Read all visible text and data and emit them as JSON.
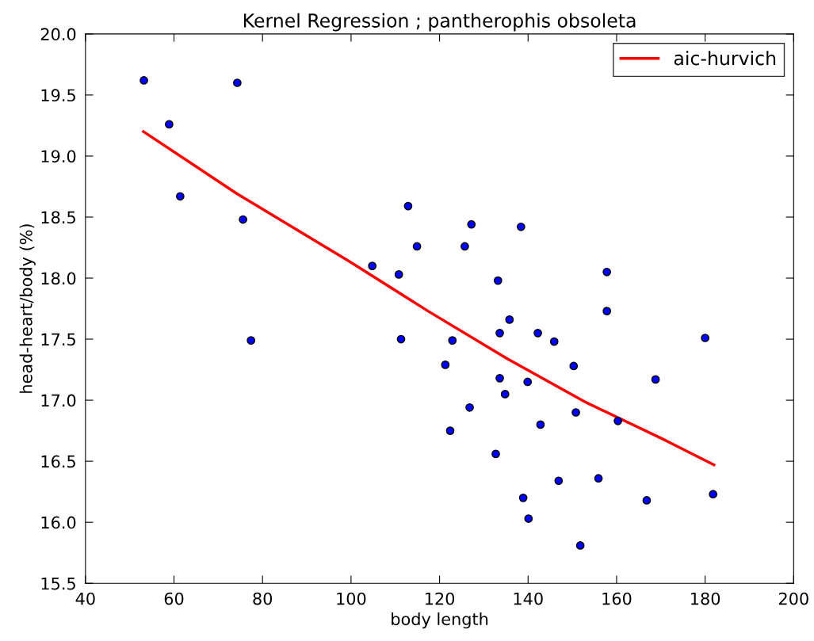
{
  "chart_data": {
    "type": "scatter",
    "title": "Kernel Regression ; pantherophis obsoleta",
    "xlabel": "body length",
    "ylabel": "head-heart/body (%)",
    "xlim": [
      40,
      200
    ],
    "xticks": [
      40,
      60,
      80,
      100,
      120,
      140,
      160,
      180,
      200
    ],
    "ylim": [
      15.5,
      20.0
    ],
    "yticks": [
      {
        "value": 15.5,
        "label": "15.5"
      },
      {
        "value": 16.0,
        "label": "16.0"
      },
      {
        "value": 16.5,
        "label": "16.5"
      },
      {
        "value": 17.0,
        "label": "17.0"
      },
      {
        "value": 17.5,
        "label": "17.5"
      },
      {
        "value": 18.0,
        "label": "18.0"
      },
      {
        "value": 18.5,
        "label": "18.5"
      },
      {
        "value": 19.0,
        "label": "19.0"
      },
      {
        "value": 19.5,
        "label": "19.5"
      },
      {
        "value": 20.0,
        "label": "20.0"
      }
    ],
    "grid": false,
    "legend": "top right",
    "series": [
      {
        "color": "#0000ff",
        "marker": "circle",
        "x": [
          53.2,
          74.3,
          58.9,
          61.4,
          75.6,
          77.4,
          112.9,
          127.2,
          138.4,
          114.9,
          125.7,
          104.8,
          110.8,
          133.2,
          157.8,
          157.8,
          135.8,
          133.6,
          142.2,
          145.9,
          111.3,
          122.9,
          180.0,
          121.3,
          150.3,
          133.6,
          139.9,
          168.8,
          134.8,
          126.8,
          150.8,
          160.3,
          142.8,
          122.4,
          132.7,
          146.9,
          155.9,
          138.9,
          166.8,
          181.8,
          140.1,
          151.8
        ],
        "values": [
          19.62,
          19.6,
          19.26,
          18.67,
          18.48,
          17.49,
          18.59,
          18.44,
          18.42,
          18.26,
          18.26,
          18.1,
          18.03,
          17.98,
          18.05,
          17.73,
          17.66,
          17.55,
          17.55,
          17.48,
          17.5,
          17.49,
          17.51,
          17.29,
          17.28,
          17.18,
          17.15,
          17.17,
          17.05,
          16.94,
          16.9,
          16.83,
          16.8,
          16.75,
          16.56,
          16.34,
          16.36,
          16.2,
          16.18,
          16.23,
          16.03,
          15.81
        ]
      },
      {
        "type": "line",
        "name": "aic-hurvich",
        "color": "#ff0000",
        "line_style": "solid",
        "x": [
          53.1,
          74.3,
          99.5,
          117.4,
          135.3,
          153.2,
          171.1,
          182.0
        ],
        "values": [
          19.2,
          18.69,
          18.14,
          17.73,
          17.34,
          16.98,
          16.67,
          16.47
        ]
      }
    ]
  }
}
